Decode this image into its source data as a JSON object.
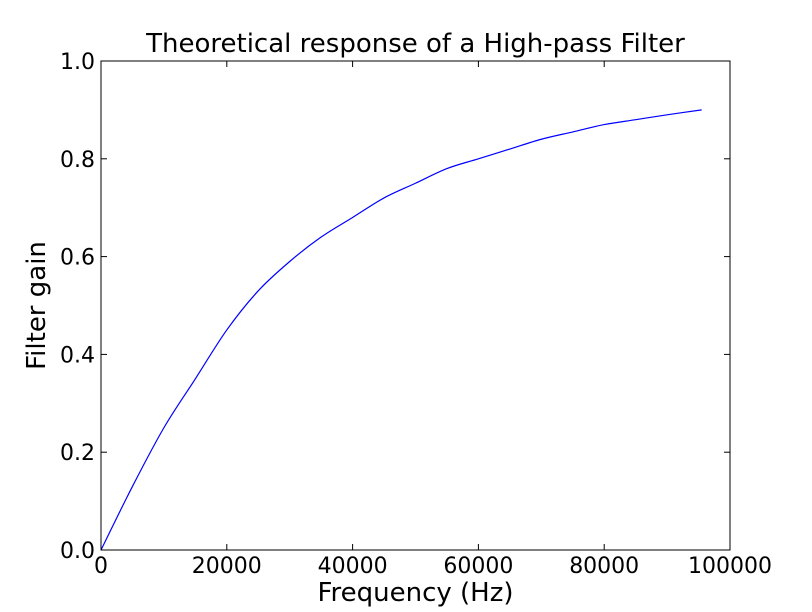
{
  "chart_data": {
    "type": "line",
    "title": "Theoretical response of a High-pass Filter",
    "xlabel": "Frequency (Hz)",
    "ylabel": "Filter gain",
    "xlim": [
      0,
      100000
    ],
    "ylim": [
      0.0,
      1.0
    ],
    "x_ticks": [
      0,
      20000,
      40000,
      60000,
      80000,
      100000
    ],
    "x_tick_labels": [
      "0",
      "20000",
      "40000",
      "60000",
      "80000",
      "100000"
    ],
    "y_ticks": [
      0.0,
      0.2,
      0.4,
      0.6,
      0.8,
      1.0
    ],
    "y_tick_labels": [
      "0.0",
      "0.2",
      "0.4",
      "0.6",
      "0.8",
      "1.0"
    ],
    "grid": false,
    "legend": "none",
    "series": [
      {
        "color": "#0000ff",
        "x": [
          0,
          5000,
          10000,
          15000,
          20000,
          25000,
          30000,
          35000,
          40000,
          45000,
          50000,
          55000,
          60000,
          65000,
          70000,
          75000,
          80000,
          85000,
          90000,
          95500
        ],
        "y": [
          0.0,
          0.13,
          0.25,
          0.35,
          0.45,
          0.53,
          0.59,
          0.64,
          0.68,
          0.72,
          0.75,
          0.78,
          0.8,
          0.82,
          0.84,
          0.855,
          0.87,
          0.88,
          0.89,
          0.9
        ]
      }
    ]
  }
}
